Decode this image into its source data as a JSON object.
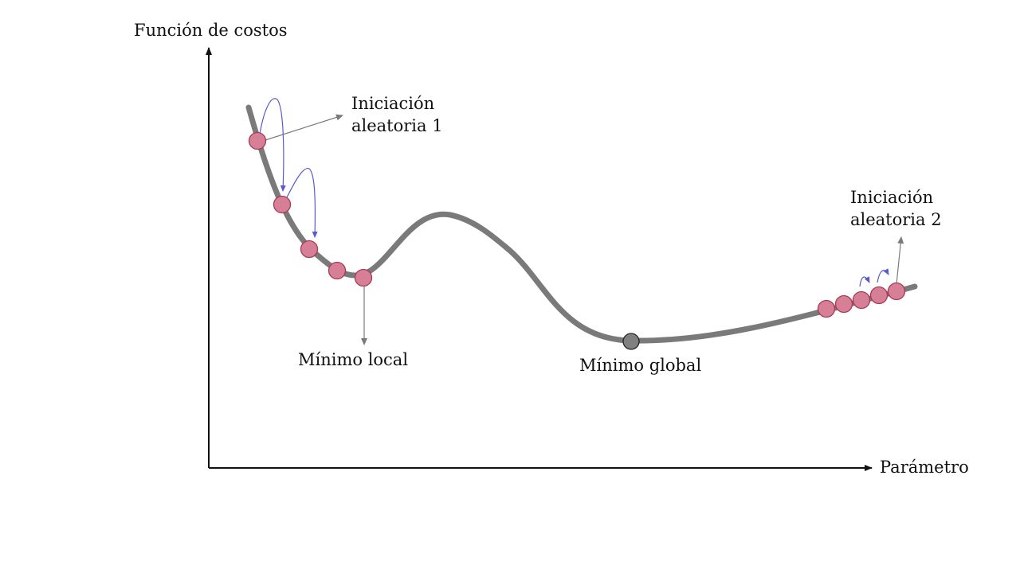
{
  "labels": {
    "y_axis": "Función de costos",
    "x_axis": "Parámetro",
    "init1_line1": "Iniciación",
    "init1_line2": "aleatoria 1",
    "init2_line1": "Iniciación",
    "init2_line2": "aleatoria 2",
    "local_min": "Mínimo local",
    "global_min": "Mínimo global"
  },
  "colors": {
    "axis": "#111111",
    "curve": "#7a7a7a",
    "point_fill": "#d77f96",
    "point_stroke": "#a63a55",
    "global_point_fill": "#808080",
    "global_point_stroke": "#222222",
    "hop_arrow": "#5a5ad0",
    "label_arrow": "#7a7a7a"
  }
}
